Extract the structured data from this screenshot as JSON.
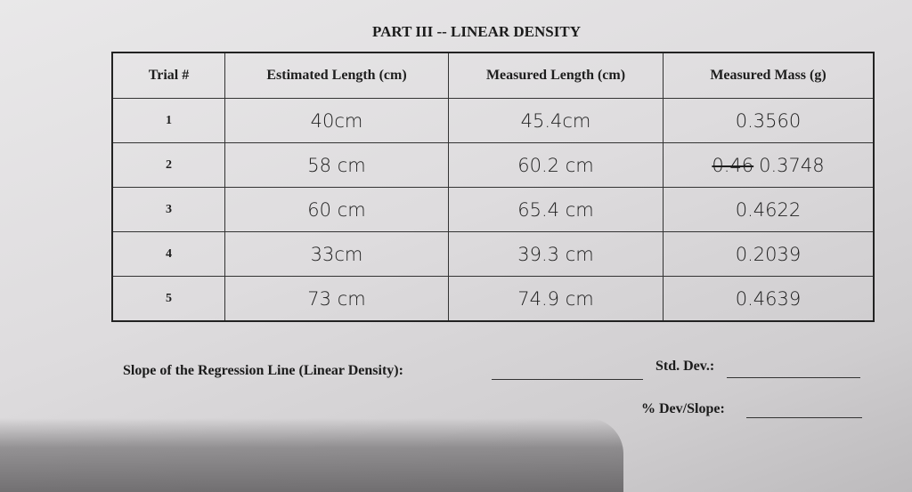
{
  "title": "PART III -- LINEAR DENSITY",
  "table": {
    "headers": [
      "Trial #",
      "Estimated Length (cm)",
      "Measured Length (cm)",
      "Measured Mass (g)"
    ],
    "rows": [
      [
        "1",
        "40cm",
        "45.4cm",
        "0.3560"
      ],
      [
        "2",
        "58 cm",
        "60.2 cm",
        {
          "struck": "0.46",
          "text": "0.3748"
        }
      ],
      [
        "3",
        "60 cm",
        "65.4 cm",
        "0.4622"
      ],
      [
        "4",
        "33cm",
        "39.3 cm",
        "0.2039"
      ],
      [
        "5",
        "73 cm",
        "74.9 cm",
        "0.4639"
      ]
    ]
  },
  "footer": {
    "slope_label": "Slope of the Regression Line (Linear Density):",
    "std_dev_label": "Std. Dev.:",
    "dev_slope_label": "% Dev/Slope:"
  }
}
